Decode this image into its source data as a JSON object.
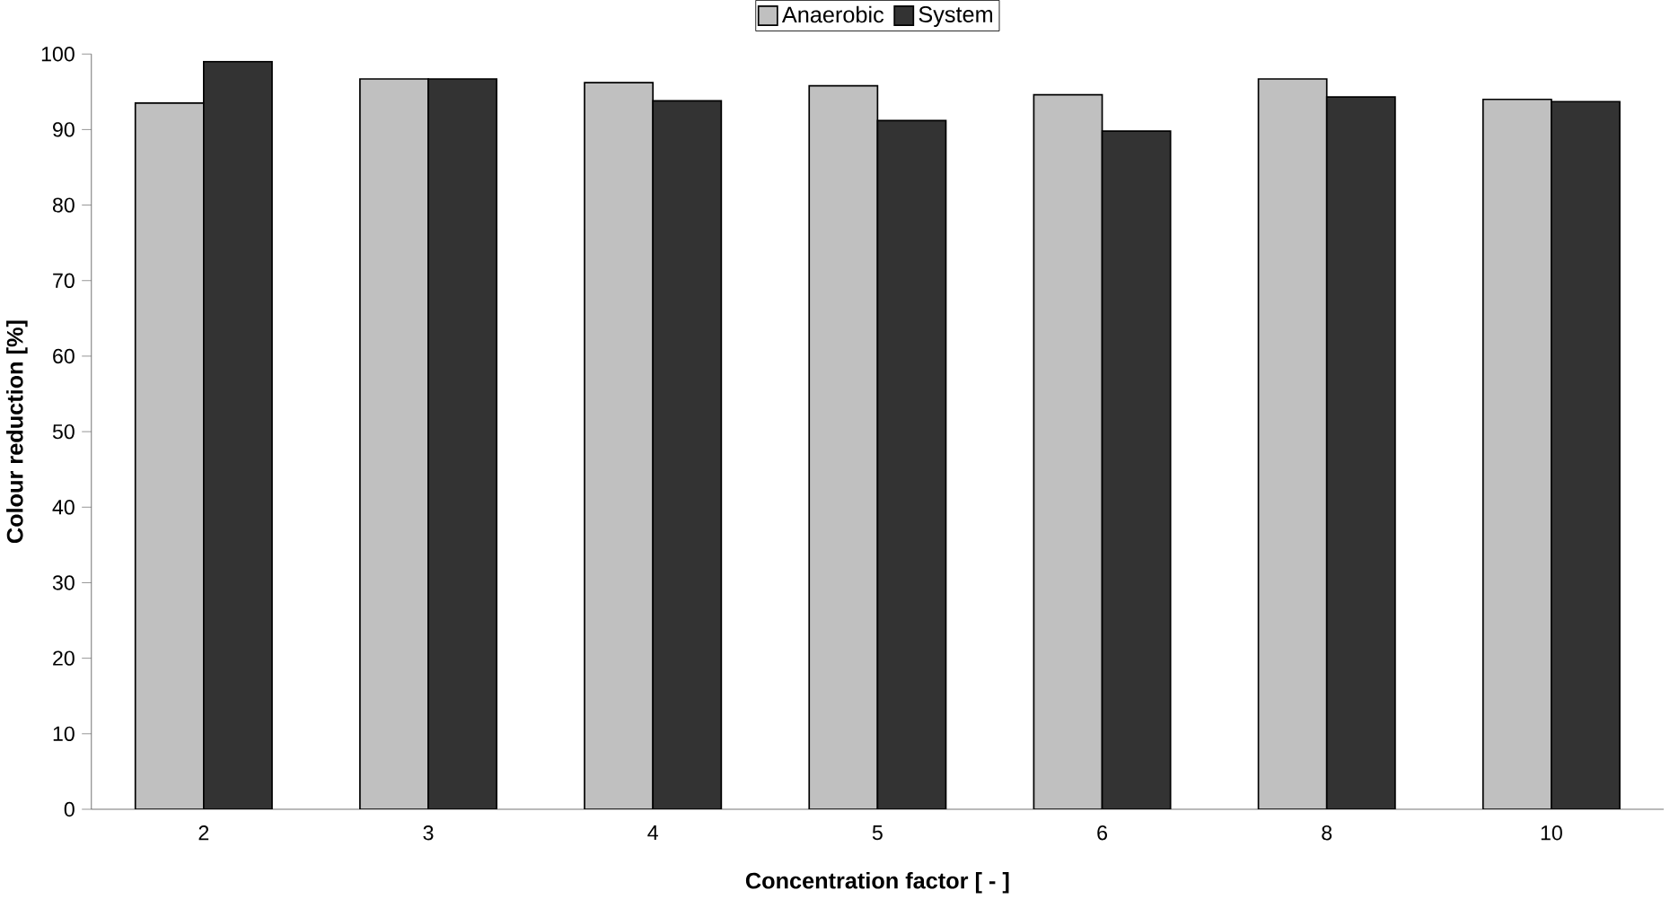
{
  "chart_data": {
    "type": "bar",
    "xlabel": "Concentration factor [ - ]",
    "ylabel": "Colour reduction [%]",
    "categories": [
      "2",
      "3",
      "4",
      "5",
      "6",
      "8",
      "10"
    ],
    "series": [
      {
        "name": "Anaerobic",
        "color": "#c0c0c0",
        "values": [
          93.5,
          96.7,
          96.2,
          95.8,
          94.6,
          96.7,
          94.0
        ]
      },
      {
        "name": "System",
        "color": "#333333",
        "values": [
          99.0,
          96.7,
          93.8,
          91.2,
          89.8,
          94.3,
          93.7
        ]
      }
    ],
    "ylim": [
      0,
      100
    ],
    "yticks": [
      0,
      10,
      20,
      30,
      40,
      50,
      60,
      70,
      80,
      90,
      100
    ],
    "grid": false,
    "legend": "top"
  }
}
